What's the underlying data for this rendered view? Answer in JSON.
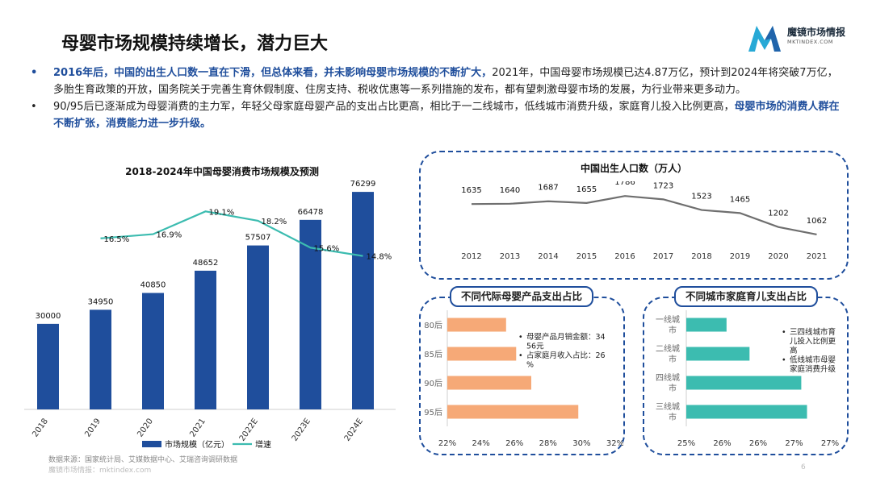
{
  "header": {
    "title": "母婴市场规模持续增长，潜力巨大",
    "logo_name": "魔镜市场情报",
    "logo_sub": "MKTINDEX.COM"
  },
  "bullets": [
    {
      "marker": "•",
      "highlight": "2016年后，中国的出生人口数一直在下滑，但总体来看，并未影响母婴市场规模的不断扩大，",
      "text": "2021年，中国母婴市场规模已达4.87万亿，预计到2024年将突破7万亿，多胎生育政策的开放，国务院关于完善生育休假制度、住房支持、税收优惠等一系列措施的发布，都有望刺激母婴市场的发展，为行业带来更多动力。"
    },
    {
      "marker": "•",
      "text": "90/95后已逐渐成为母婴消费的主力军，年轻父母家庭母婴产品的支出占比更高，相比于一二线城市，低线城市消费升级，家庭育儿投入比例更高，",
      "highlight": "母婴市场的消费人群在不断扩张，消费能力进一步升级。"
    }
  ],
  "chart_data": [
    {
      "type": "bar",
      "title": "2018-2024年中国母婴消费市场规模及预测",
      "categories": [
        "2018",
        "2019",
        "2020",
        "2021",
        "2022E",
        "2023E",
        "2024E"
      ],
      "series": [
        {
          "name": "市场规模（亿元）",
          "values": [
            30000,
            34950,
            40850,
            48652,
            57507,
            66478,
            76299
          ],
          "color": "#1f4e9c"
        },
        {
          "name": "增速",
          "type": "line",
          "values": [
            null,
            16.5,
            16.9,
            19.1,
            18.2,
            15.6,
            14.8
          ],
          "labels": [
            "",
            "16.5%",
            "16.9%",
            "19.1%",
            "18.2%",
            "15.6%",
            "14.8%"
          ],
          "color": "#3cbcb0"
        }
      ],
      "ylim": [
        0,
        80000
      ],
      "line_ylim": [
        0,
        22
      ]
    },
    {
      "type": "line",
      "title": "中国出生人口数（万人）",
      "x": [
        "2012",
        "2013",
        "2014",
        "2015",
        "2016",
        "2017",
        "2018",
        "2019",
        "2020",
        "2021"
      ],
      "values": [
        1635,
        1640,
        1687,
        1655,
        1786,
        1723,
        1523,
        1465,
        1202,
        1062
      ],
      "color": "#6f6f6f"
    },
    {
      "type": "bar",
      "orientation": "horizontal",
      "title": "不同代际母婴产品支出占比",
      "categories": [
        "80后",
        "85后",
        "90后",
        "95后"
      ],
      "values": [
        25.5,
        26.1,
        27.0,
        29.8
      ],
      "xlim": [
        22,
        32
      ],
      "ticks": [
        "22%",
        "24%",
        "26%",
        "28%",
        "30%",
        "32%"
      ],
      "color": "#f6a977",
      "notes": [
        "母婴产品月销金额：3456元",
        "占家庭月收入占比：26%"
      ]
    },
    {
      "type": "bar",
      "orientation": "horizontal",
      "title": "不同城市家庭育儿支出占比",
      "categories": [
        "一线城市",
        "二线城市",
        "四线城市",
        "三线城市"
      ],
      "values": [
        25.7,
        26.1,
        27.0,
        27.1
      ],
      "xlim": [
        25,
        27.5
      ],
      "ticks": [
        "25%",
        "26%",
        "26%",
        "27%",
        "27%"
      ],
      "color": "#3cbcb0",
      "notes": [
        "三四线城市育儿投入比例更高",
        "低线城市母婴家庭消费升级"
      ]
    }
  ],
  "footer": {
    "source": "数据来源：国家统计局、艾媒数据中心、艾瑞咨询调研数据",
    "site": "魔镜市场情报：mktindex.com",
    "page": "6"
  }
}
